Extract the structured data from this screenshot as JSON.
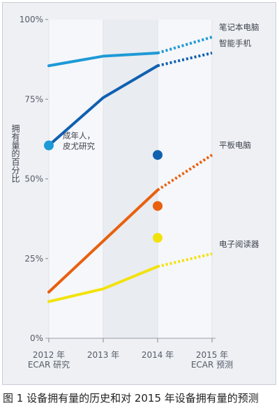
{
  "chart_data": {
    "type": "line",
    "categories": [
      [
        "2012 年",
        "ECAR 研究"
      ],
      [
        "2013 年"
      ],
      [
        "2014 年"
      ],
      [
        "2015 年",
        "ECAR 预测"
      ]
    ],
    "x": [
      2012,
      2013,
      2014,
      2015
    ],
    "ylim": [
      0,
      100
    ],
    "yticks": [
      0,
      25,
      50,
      75,
      100
    ],
    "ytick_labels": [
      "0%",
      "25%",
      "50%",
      "75%",
      "100%"
    ],
    "ylabel": "拥有量的百分比",
    "grid": false,
    "forecast_from": 2014,
    "series": [
      {
        "name": "笔记本电脑",
        "color": "#1e9ad6",
        "values": [
          85.5,
          88.5,
          89.5,
          94.5
        ]
      },
      {
        "name": "智能手机",
        "color": "#1060b0",
        "values": [
          60.5,
          75.5,
          85.5,
          89.5
        ]
      },
      {
        "name": "平板电脑",
        "color": "#e8600e",
        "values": [
          14.5,
          30.5,
          46.5,
          57.5
        ]
      },
      {
        "name": "电子阅读器",
        "color": "#f2e20c",
        "values": [
          11.5,
          15.5,
          22.5,
          26.5
        ]
      }
    ],
    "survey_points": [
      {
        "name": "成年人，皮尤研究",
        "x": 2012,
        "y": 60.5,
        "color": "#1e9ad6",
        "label": [
          "成年人，",
          "皮尤研究"
        ]
      },
      {
        "x": 2014,
        "y": 57.5,
        "color": "#1060b0"
      },
      {
        "x": 2014,
        "y": 41.5,
        "color": "#e8600e"
      },
      {
        "x": 2014,
        "y": 31.5,
        "color": "#f2e20c"
      }
    ]
  },
  "caption": "图 1 设备拥有量的历史和对 2015 年设备拥有量的预测"
}
